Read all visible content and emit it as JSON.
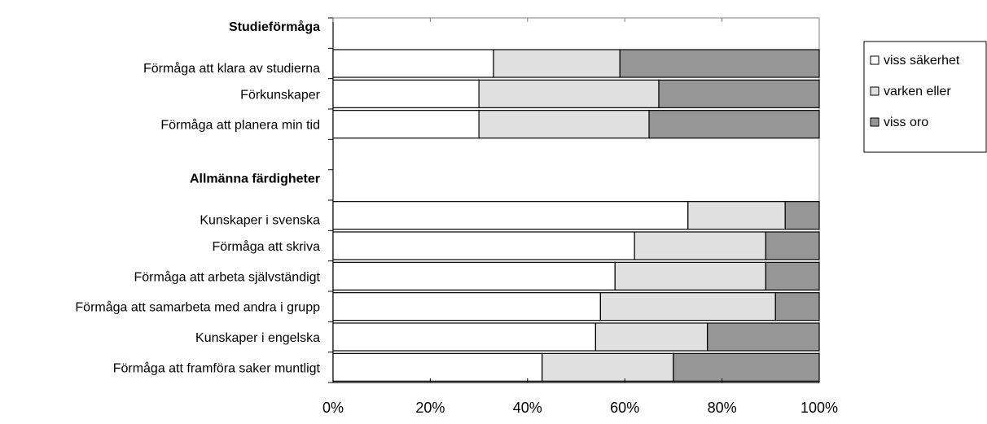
{
  "chart_data": {
    "type": "bar",
    "orientation": "horizontal",
    "stacked": true,
    "percent_stacked": true,
    "title": "",
    "xlabel": "",
    "ylabel": "",
    "xlim": [
      0,
      100
    ],
    "x_ticks": [
      "0%",
      "20%",
      "40%",
      "60%",
      "80%",
      "100%"
    ],
    "grid": false,
    "legend_position": "right",
    "rows": [
      {
        "kind": "group",
        "label": "Studieförmåga"
      },
      {
        "kind": "bar",
        "label": "Förmåga att klara av studierna",
        "values": [
          33,
          26,
          41
        ]
      },
      {
        "kind": "bar",
        "label": "Förkunskaper",
        "values": [
          30,
          37,
          33
        ]
      },
      {
        "kind": "bar",
        "label": "Förmåga att planera min tid",
        "values": [
          30,
          35,
          35
        ]
      },
      {
        "kind": "gap"
      },
      {
        "kind": "group",
        "label": "Allmänna färdigheter"
      },
      {
        "kind": "bar",
        "label": "Kunskaper i svenska",
        "values": [
          73,
          20,
          7
        ]
      },
      {
        "kind": "bar",
        "label": "Förmåga att skriva",
        "values": [
          62,
          27,
          11
        ]
      },
      {
        "kind": "bar",
        "label": "Förmåga att arbeta självständigt",
        "values": [
          58,
          31,
          11
        ]
      },
      {
        "kind": "bar",
        "label": "Förmåga att samarbeta med andra i grupp",
        "values": [
          55,
          36,
          9
        ]
      },
      {
        "kind": "bar",
        "label": "Kunskaper i engelska",
        "values": [
          54,
          23,
          23
        ]
      },
      {
        "kind": "bar",
        "label": "Förmåga att framföra saker muntligt",
        "values": [
          43,
          27,
          30
        ]
      }
    ],
    "series": [
      {
        "name": "viss säkerhet",
        "color": "#ffffff"
      },
      {
        "name": "varken eller",
        "color": "#e0e0e0"
      },
      {
        "name": "viss oro",
        "color": "#969696"
      }
    ]
  }
}
